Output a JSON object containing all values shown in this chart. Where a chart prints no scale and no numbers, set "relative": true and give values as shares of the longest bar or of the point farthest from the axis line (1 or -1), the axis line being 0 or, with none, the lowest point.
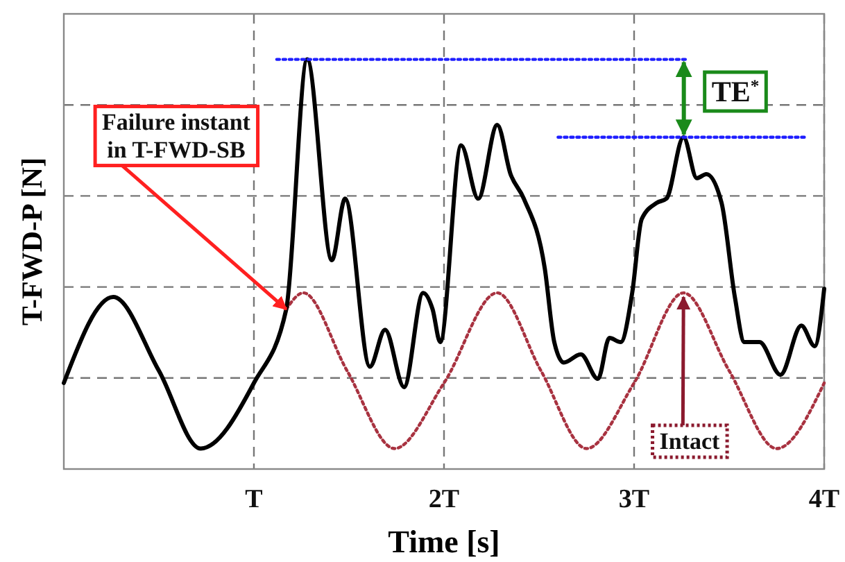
{
  "chart_data": {
    "type": "line",
    "relative": true,
    "xlabel": "Time [s]",
    "ylabel": "T-FWD-P [N]",
    "xlim": [
      0,
      4
    ],
    "xticks": [
      {
        "value": 1,
        "label": "T"
      },
      {
        "value": 2,
        "label": "2T"
      },
      {
        "value": 3,
        "label": "3T"
      },
      {
        "value": 4,
        "label": "4T"
      }
    ],
    "grid": true,
    "series": [
      {
        "color": "#a83240",
        "line_style": "dotted",
        "x": [
          1.17,
          1.26,
          1.49,
          1.74,
          2,
          2.28,
          2.51,
          2.75,
          3,
          3.26,
          3.5,
          3.75,
          4
        ],
        "values": [
          0.39,
          0.43,
          0.24,
          0.05,
          0.21,
          0.43,
          0.24,
          0.05,
          0.21,
          0.43,
          0.24,
          0.05,
          0.21
        ]
      },
      {
        "color": "#000000",
        "line_style": "solid",
        "x": [
          0,
          0.26,
          0.5,
          0.72,
          1,
          1.17,
          1.28,
          1.41,
          1.48,
          1.61,
          1.69,
          1.79,
          1.89,
          1.94,
          1.98,
          2.09,
          2.18,
          2.28,
          2.35,
          2.42,
          2.53,
          2.58,
          2.63,
          2.72,
          2.81,
          2.87,
          2.93,
          2.99,
          3.04,
          3.12,
          3.17,
          3.26,
          3.33,
          3.38,
          3.46,
          3.53,
          3.58,
          3.66,
          3.77,
          3.88,
          3.95,
          4
        ],
        "values": [
          0.21,
          0.42,
          0.24,
          0.05,
          0.21,
          0.39,
          1,
          0.51,
          0.66,
          0.25,
          0.34,
          0.2,
          0.43,
          0.39,
          0.31,
          0.79,
          0.66,
          0.84,
          0.72,
          0.66,
          0.49,
          0.31,
          0.26,
          0.28,
          0.22,
          0.32,
          0.31,
          0.43,
          0.61,
          0.65,
          0.66,
          0.81,
          0.71,
          0.72,
          0.65,
          0.42,
          0.31,
          0.31,
          0.23,
          0.35,
          0.3,
          0.44
        ]
      },
      {
        "color": "#1f1fff",
        "line_style": "dotted",
        "x": [
          1.12,
          3.27
        ],
        "values": [
          1,
          1
        ]
      },
      {
        "color": "#1f1fff",
        "line_style": "dotted",
        "x": [
          2.6,
          3.9
        ],
        "values": [
          0.81,
          0.81
        ]
      }
    ],
    "annotations": [
      {
        "text": "Failure instant\nin T-FWD-SB",
        "x": 1.17,
        "y": 0.39
      },
      "TE$^{*}$",
      {
        "text": "Intact",
        "x": 3.26,
        "y": 0.43
      }
    ]
  }
}
